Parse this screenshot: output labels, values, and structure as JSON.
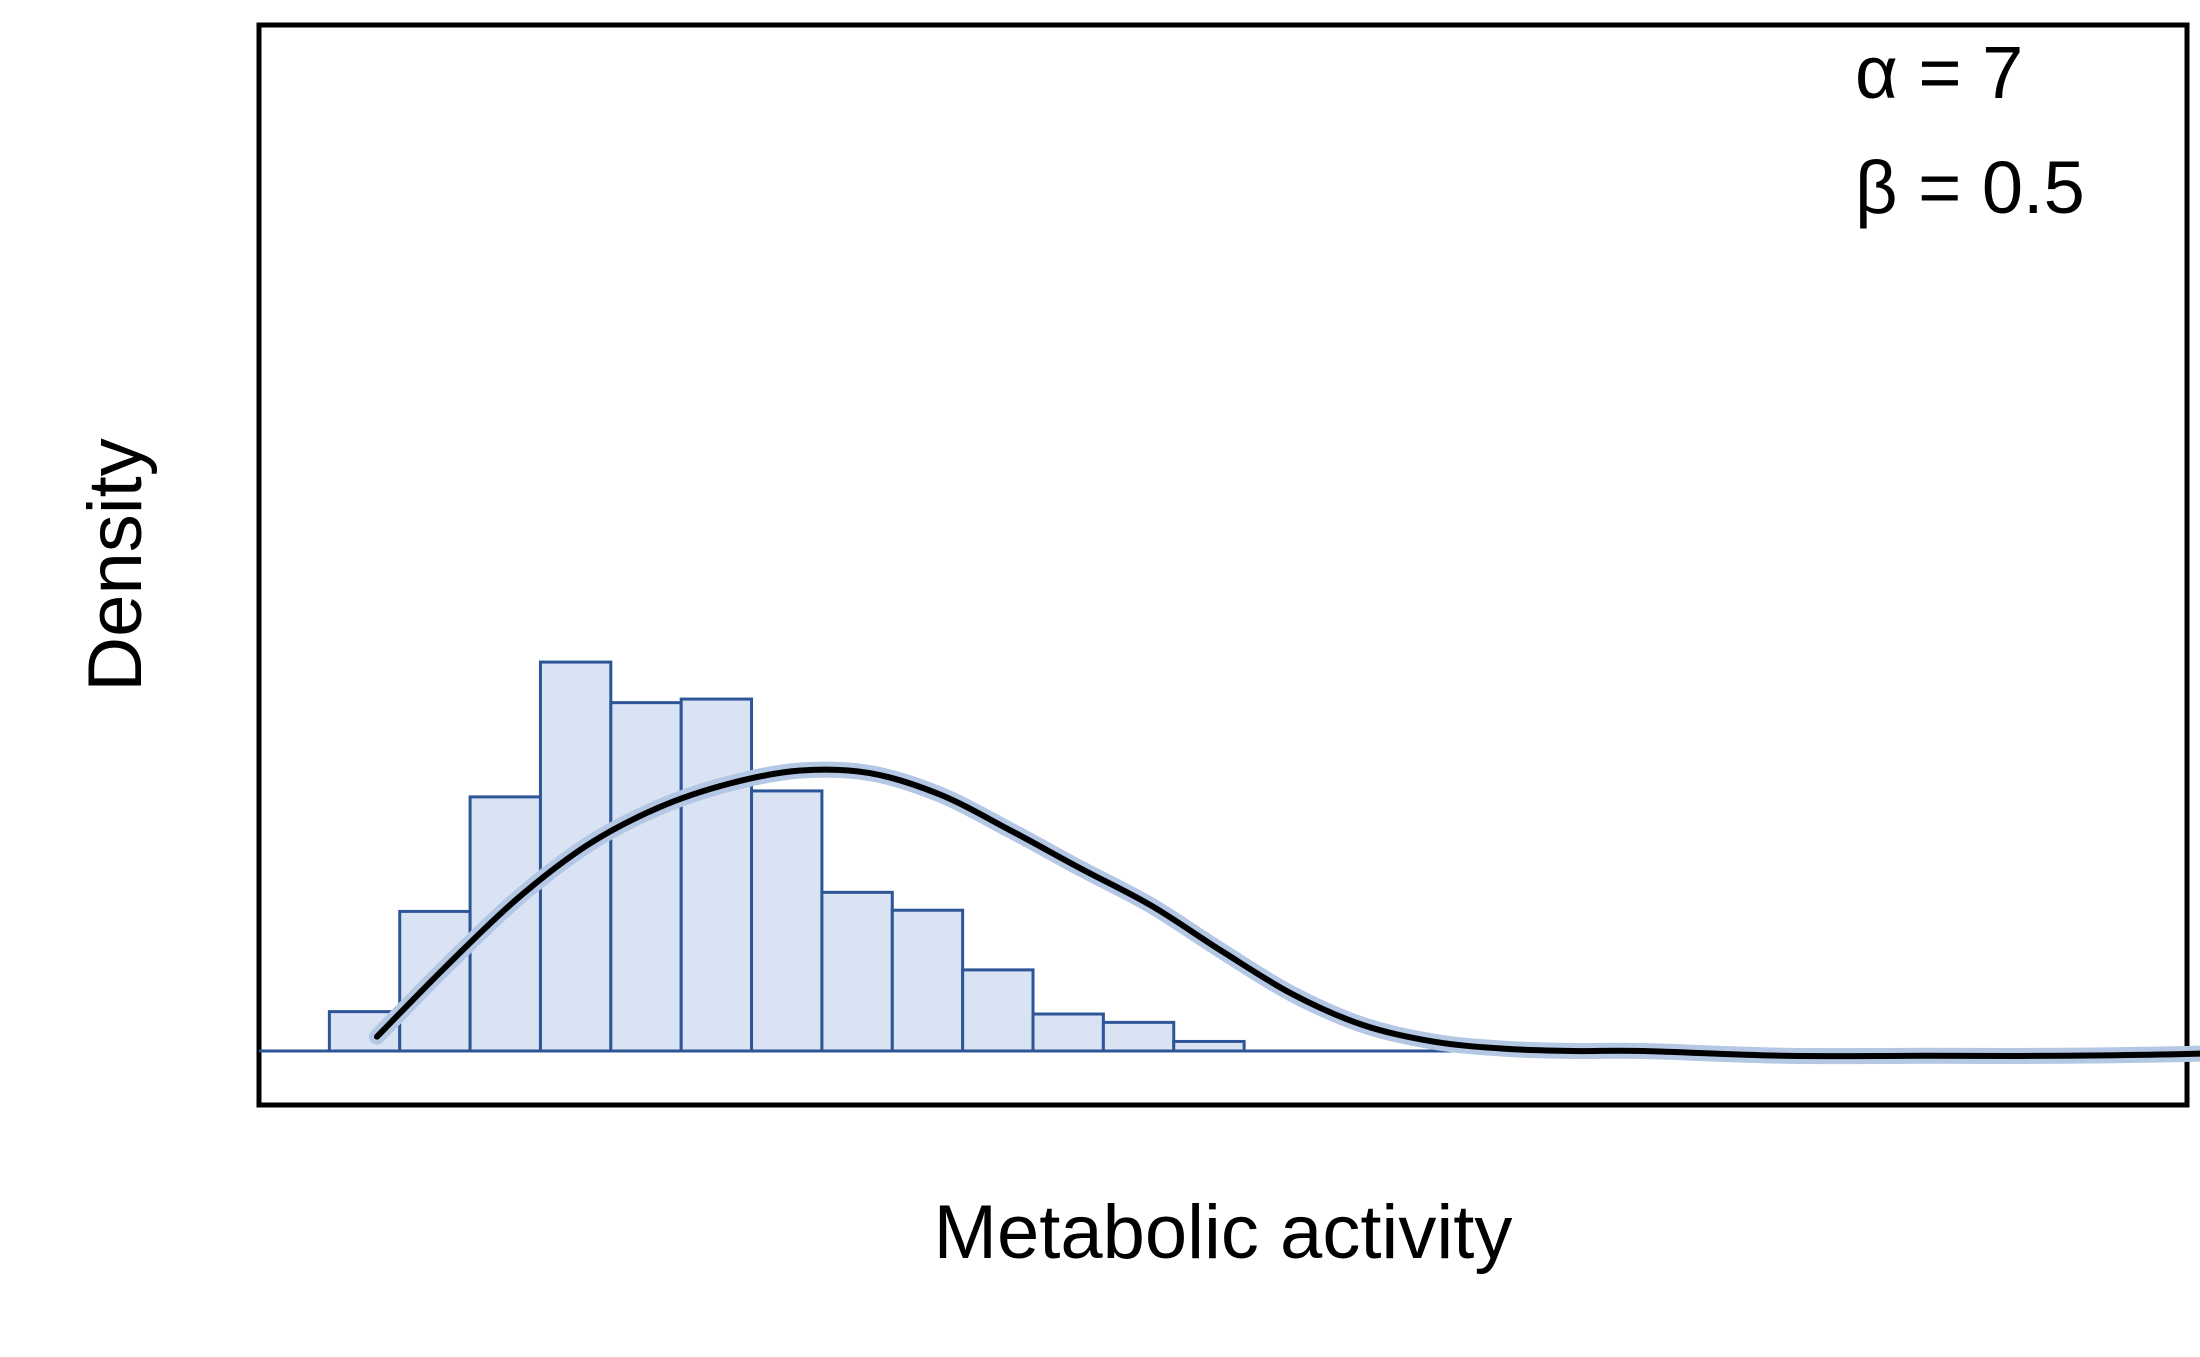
{
  "chart_data": {
    "type": "bar",
    "title": "",
    "xlabel": "Metabolic activity",
    "ylabel": "Density",
    "grid": false,
    "legend": "none",
    "x_ticks_shown": false,
    "y_ticks_shown": false,
    "xlim": [
      0,
      13.7
    ],
    "ylim": [
      0,
      8.6
    ],
    "annotations": [
      {
        "text": "α = 7"
      },
      {
        "text": "β = 0.5"
      }
    ],
    "histogram": {
      "bin_edges": [
        0.5,
        1.0,
        1.5,
        2.0,
        2.5,
        3.0,
        3.5,
        4.0,
        4.5,
        5.0,
        5.5,
        6.0,
        6.5,
        7.0
      ],
      "densities": [
        0.33,
        1.17,
        2.13,
        3.26,
        2.92,
        2.95,
        2.18,
        1.33,
        1.18,
        0.68,
        0.31,
        0.24,
        0.08
      ]
    },
    "density_curve": {
      "x": [
        0.0,
        0.5,
        1.0,
        1.5,
        2.0,
        2.5,
        3.0,
        3.5,
        4.0,
        4.5,
        5.0,
        5.5,
        6.0,
        6.5,
        7.0,
        7.5,
        8.0,
        8.5,
        9.0,
        10.0,
        11.0,
        12.0,
        13.0,
        13.7
      ],
      "y": [
        0.12,
        0.72,
        1.28,
        1.73,
        2.04,
        2.24,
        2.35,
        2.33,
        2.15,
        1.85,
        1.53,
        1.22,
        0.84,
        0.48,
        0.22,
        0.08,
        0.02,
        0.0,
        0.0,
        -0.04,
        -0.04,
        -0.04,
        -0.02,
        0.02
      ]
    },
    "colors": {
      "bar_fill": "#d9e3f3",
      "bar_edge": "#2d5597",
      "baseline": "#2d5597",
      "curve": "#000000",
      "curve_halo": "#b4c7e4",
      "frame": "#000000"
    }
  }
}
